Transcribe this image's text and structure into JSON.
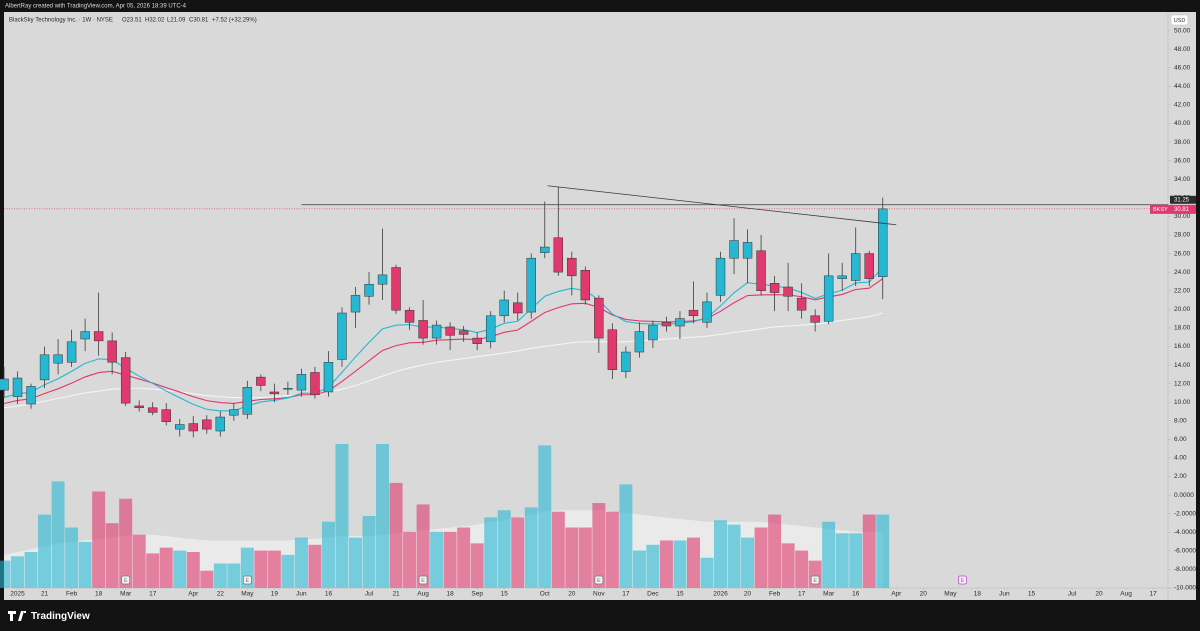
{
  "header": {
    "text": "AlbertRay created with TradingView.com, Apr 05, 2026 18:39 UTC-4"
  },
  "footer": {
    "logo": "TradingView"
  },
  "chart_data": {
    "type": "candlestick",
    "title": "BlackSky Technology Inc. · 1W · NYSE",
    "legend_values": [
      "O23.51",
      "H32.02",
      "L21.09",
      "C30.81",
      "+7.52 (+32.29%)"
    ],
    "currency": "USD",
    "grid": false,
    "xlim": [
      0,
      86.1
    ],
    "ylim": [
      -10,
      52
    ],
    "yticks": [
      {
        "value": 50,
        "label": "50.00"
      },
      {
        "value": 48,
        "label": "48.00"
      },
      {
        "value": 46,
        "label": "46.00"
      },
      {
        "value": 44,
        "label": "44.00"
      },
      {
        "value": 42,
        "label": "42.00"
      },
      {
        "value": 40,
        "label": "40.00"
      },
      {
        "value": 38,
        "label": "38.00"
      },
      {
        "value": 36,
        "label": "36.00"
      },
      {
        "value": 34,
        "label": "34.00"
      },
      {
        "value": 32,
        "label": "32.00"
      },
      {
        "value": 30,
        "label": "30.00"
      },
      {
        "value": 28,
        "label": "28.00"
      },
      {
        "value": 26,
        "label": "26.00"
      },
      {
        "value": 24,
        "label": "24.00"
      },
      {
        "value": 22,
        "label": "22.00"
      },
      {
        "value": 20,
        "label": "20.00"
      },
      {
        "value": 18,
        "label": "18.00"
      },
      {
        "value": 16,
        "label": "16.00"
      },
      {
        "value": 14,
        "label": "14.00"
      },
      {
        "value": 12,
        "label": "12.00"
      },
      {
        "value": 10,
        "label": "10.00"
      },
      {
        "value": 8,
        "label": "8.00"
      },
      {
        "value": 6,
        "label": "6.00"
      },
      {
        "value": 4,
        "label": "4.00"
      },
      {
        "value": 2,
        "label": "2.00"
      },
      {
        "value": 0,
        "label": "0.0000"
      },
      {
        "value": -2,
        "label": "-2.0000"
      },
      {
        "value": -4,
        "label": "-4.0000"
      },
      {
        "value": -6,
        "label": "-6.0000"
      },
      {
        "value": -8,
        "label": "-8.0000"
      },
      {
        "value": -10,
        "label": "-10.000"
      }
    ],
    "xticks": [
      {
        "value": 1,
        "label": "2025"
      },
      {
        "value": 3,
        "label": "21"
      },
      {
        "value": 5,
        "label": "Feb"
      },
      {
        "value": 7,
        "label": "18"
      },
      {
        "value": 9,
        "label": "Mar"
      },
      {
        "value": 11,
        "label": "17"
      },
      {
        "value": 14,
        "label": "Apr"
      },
      {
        "value": 16,
        "label": "22"
      },
      {
        "value": 18,
        "label": "May"
      },
      {
        "value": 20,
        "label": "19"
      },
      {
        "value": 22,
        "label": "Jun"
      },
      {
        "value": 24,
        "label": "16"
      },
      {
        "value": 27,
        "label": "Jul"
      },
      {
        "value": 29,
        "label": "21"
      },
      {
        "value": 31,
        "label": "Aug"
      },
      {
        "value": 33,
        "label": "18"
      },
      {
        "value": 35,
        "label": "Sep"
      },
      {
        "value": 37,
        "label": "15"
      },
      {
        "value": 40,
        "label": "Oct"
      },
      {
        "value": 42,
        "label": "20"
      },
      {
        "value": 44,
        "label": "Nov"
      },
      {
        "value": 46,
        "label": "17"
      },
      {
        "value": 48,
        "label": "Dec"
      },
      {
        "value": 50,
        "label": "15"
      },
      {
        "value": 53,
        "label": "2026"
      },
      {
        "value": 55,
        "label": "20"
      },
      {
        "value": 57,
        "label": "Feb"
      },
      {
        "value": 59,
        "label": "17"
      },
      {
        "value": 61,
        "label": "Mar"
      },
      {
        "value": 63,
        "label": "16"
      },
      {
        "value": 66,
        "label": "Apr"
      },
      {
        "value": 68,
        "label": "20"
      },
      {
        "value": 70,
        "label": "May"
      },
      {
        "value": 72,
        "label": "18"
      },
      {
        "value": 74,
        "label": "Jun"
      },
      {
        "value": 76,
        "label": "15"
      },
      {
        "value": 79,
        "label": "Jul"
      },
      {
        "value": 81,
        "label": "20"
      },
      {
        "value": 83,
        "label": "Aug"
      },
      {
        "value": 85,
        "label": "17"
      }
    ],
    "series": [
      {
        "name": "BKSY",
        "up_color": "#26b7d3",
        "down_color": "#e0396d",
        "open": [
          11.3,
          10.6,
          9.8,
          12.4,
          14.2,
          14.3,
          16.8,
          17.6,
          16.6,
          14.8,
          9.6,
          9.4,
          9.2,
          7.1,
          7.7,
          8.1,
          6.9,
          8.6,
          8.7,
          12.7,
          11.1,
          11.4,
          11.3,
          13.2,
          11.1,
          14.6,
          19.7,
          21.4,
          22.7,
          24.5,
          19.9,
          18.8,
          16.9,
          18.1,
          17.7,
          16.9,
          16.5,
          19.3,
          20.7,
          19.7,
          26.1,
          27.7,
          25.5,
          24.2,
          21.2,
          17.8,
          13.3,
          15.4,
          16.7,
          18.6,
          18.2,
          19.9,
          18.6,
          21.5,
          25.5,
          25.5,
          26.3,
          22.8,
          22.4,
          21.2,
          19.3,
          18.7,
          23.3,
          23.1,
          26,
          23.51
        ],
        "high": [
          13.8,
          13.3,
          12,
          16,
          16.8,
          17.8,
          19,
          21.8,
          17.5,
          15.4,
          10.2,
          10,
          9.9,
          8.2,
          8.5,
          8.6,
          9,
          9.9,
          12.3,
          13,
          12,
          12.2,
          13.6,
          13.8,
          15.5,
          20.2,
          22.4,
          24,
          28.7,
          24.8,
          20.2,
          21,
          18.8,
          18.6,
          18.2,
          17.5,
          19.8,
          22,
          21.8,
          26,
          31.6,
          33.2,
          26.2,
          24.6,
          21.5,
          18.5,
          16,
          18.6,
          18.8,
          19.2,
          19.8,
          23,
          21.8,
          26.2,
          29.8,
          28.6,
          28,
          23.6,
          25,
          22.8,
          20,
          26,
          25,
          28.8,
          26.3,
          32.02
        ],
        "low": [
          10.5,
          9.8,
          9.3,
          11.5,
          13,
          13.8,
          15.5,
          15,
          13,
          9.6,
          9,
          8.6,
          7.5,
          6.3,
          6.2,
          6.6,
          6.3,
          8,
          8.2,
          11.2,
          10,
          10.8,
          10.6,
          10.4,
          10.6,
          13.8,
          18,
          20.5,
          21,
          19.5,
          17.8,
          16.2,
          16.2,
          15.6,
          16.5,
          15.6,
          15.8,
          18.6,
          18.8,
          19,
          25.5,
          23.6,
          21.5,
          20.5,
          15.3,
          12.5,
          12.6,
          14.8,
          15.8,
          17.6,
          16.8,
          18.5,
          18,
          20.8,
          23.8,
          22.8,
          21.5,
          19.8,
          19.8,
          19,
          17.6,
          18.4,
          22,
          22.5,
          22.5,
          21.09
        ],
        "close": [
          12.5,
          12.6,
          11.7,
          15.1,
          15.1,
          16.5,
          17.6,
          16.6,
          14.3,
          9.9,
          9.4,
          8.9,
          7.9,
          7.6,
          6.9,
          7.1,
          8.4,
          9.2,
          11.6,
          11.8,
          10.9,
          11.5,
          13,
          10.8,
          14.3,
          19.6,
          21.5,
          22.7,
          23.7,
          19.9,
          18.6,
          16.9,
          18.3,
          17.2,
          17.3,
          16.3,
          19.3,
          21,
          19.6,
          25.5,
          26.7,
          24,
          23.6,
          21,
          16.9,
          13.5,
          15.4,
          17.6,
          18.3,
          18.2,
          19,
          19.3,
          20.8,
          25.5,
          27.4,
          27.2,
          22,
          21.8,
          21.4,
          19.9,
          18.6,
          23.6,
          23.6,
          26,
          23.3,
          30.81
        ]
      }
    ],
    "overlays": [
      {
        "color": "#f4f4f4",
        "values": [
          9.4,
          9.6,
          9.8,
          10.1,
          10.4,
          10.7,
          11.0,
          11.2,
          11.4,
          11.5,
          11.5,
          11.4,
          11.3,
          11.1,
          10.9,
          10.7,
          10.6,
          10.5,
          10.5,
          10.5,
          10.6,
          10.7,
          10.8,
          10.9,
          11.1,
          11.4,
          11.8,
          12.3,
          12.8,
          13.3,
          13.7,
          14.0,
          14.3,
          14.5,
          14.7,
          14.9,
          15.1,
          15.3,
          15.5,
          15.8,
          16.0,
          16.2,
          16.4,
          16.5,
          16.5,
          16.5,
          16.5,
          16.6,
          16.7,
          16.8,
          16.9,
          17.0,
          17.1,
          17.3,
          17.5,
          17.7,
          17.9,
          18.1,
          18.2,
          18.3,
          18.4,
          18.6,
          18.8,
          19.0,
          19.2,
          19.6
        ]
      },
      {
        "color": "#e0396d",
        "values": [
          9.86,
          10.19,
          10.37,
          10.94,
          11.44,
          12.05,
          12.72,
          13.19,
          13.32,
          12.91,
          12.49,
          12.06,
          11.56,
          11.09,
          10.59,
          10.17,
          9.96,
          9.87,
          10.08,
          10.29,
          10.36,
          10.5,
          10.8,
          10.8,
          11.22,
          12.23,
          13.34,
          14.46,
          15.57,
          16.09,
          16.39,
          16.45,
          16.67,
          16.73,
          16.8,
          16.74,
          17.05,
          17.52,
          17.77,
          18.7,
          19.66,
          20.18,
          20.59,
          20.64,
          20.19,
          19.39,
          18.91,
          18.75,
          18.7,
          18.64,
          18.68,
          18.75,
          19,
          19.78,
          20.7,
          21.48,
          21.54,
          21.57,
          21.55,
          21.35,
          21.02,
          21.33,
          21.6,
          22.13,
          22.27,
          23.29
        ]
      },
      {
        "color": "#26b7d3",
        "values": [
          10.5,
          10.92,
          11.08,
          11.88,
          12.52,
          13.32,
          14.18,
          14.66,
          14.59,
          13.65,
          12.8,
          12.02,
          11.2,
          10.48,
          9.76,
          9.23,
          9.06,
          9.09,
          9.59,
          10.03,
          10.2,
          10.46,
          10.97,
          10.94,
          11.61,
          13.21,
          14.87,
          16.44,
          17.89,
          18.29,
          18.35,
          18.06,
          18.11,
          17.93,
          17.8,
          17.5,
          17.86,
          18.49,
          18.71,
          20.07,
          21.4,
          21.92,
          22.26,
          22.01,
          20.99,
          19.49,
          18.67,
          18.46,
          18.43,
          18.38,
          18.5,
          18.66,
          19.09,
          20.37,
          21.78,
          22.86,
          22.69,
          22.51,
          22.29,
          21.81,
          21.17,
          21.66,
          22.05,
          22.84,
          22.93,
          24.51
        ]
      }
    ],
    "volume": {
      "ylim": [
        0,
        100
      ],
      "values": [
        19,
        22,
        25,
        51,
        74,
        42,
        32,
        67,
        45,
        62,
        37,
        24,
        28,
        26,
        25,
        12,
        17,
        17,
        28,
        26,
        26,
        23,
        35,
        30,
        46,
        100,
        35,
        50,
        100,
        73,
        39,
        58,
        39,
        39,
        42,
        31,
        49,
        54,
        49,
        56,
        99,
        53,
        42,
        42,
        59,
        53,
        72,
        26,
        30,
        33,
        33,
        35,
        21,
        47,
        44,
        35,
        42,
        51,
        31,
        26,
        19,
        46,
        38,
        38,
        51,
        51
      ],
      "ma": [
        23,
        25,
        27,
        29,
        31,
        32,
        33,
        34,
        35,
        36,
        37,
        37,
        36,
        35,
        34,
        33,
        33,
        33,
        33,
        33,
        33,
        33,
        34,
        34,
        35,
        36,
        36,
        36,
        37,
        38,
        39,
        40,
        41,
        42,
        43,
        44,
        46,
        47,
        49,
        51,
        53,
        54,
        54,
        54,
        54,
        53,
        52,
        51,
        50,
        49,
        48,
        47,
        46,
        46,
        46,
        46,
        46,
        45,
        44,
        43,
        42,
        41,
        40,
        39,
        39,
        39
      ]
    },
    "hline": {
      "value": 31.25,
      "from": 22,
      "color": "#3a3a3a"
    },
    "trendline": {
      "x": [
        40.2,
        66
      ],
      "y": [
        33.3,
        29.1
      ],
      "color": "#3a3a3a"
    },
    "events": [
      {
        "x": 9,
        "label": "E",
        "color": "#777777"
      },
      {
        "x": 18,
        "label": "E",
        "color": "#777777"
      },
      {
        "x": 31,
        "label": "E",
        "color": "#777777"
      },
      {
        "x": 44,
        "label": "E",
        "color": "#777777"
      },
      {
        "x": 60,
        "label": "E",
        "color": "#777777"
      },
      {
        "x": 70.9,
        "label": "E",
        "color": "#c23fd6"
      }
    ]
  }
}
